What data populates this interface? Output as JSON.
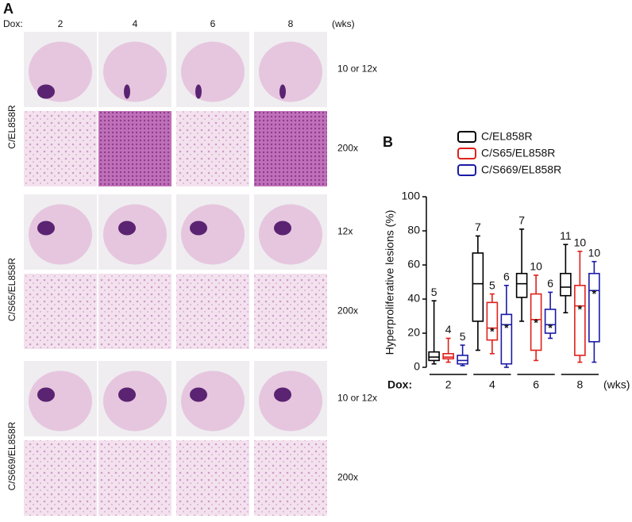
{
  "panel_a": {
    "label": "A",
    "dox_label": "Dox:",
    "weeks": [
      "2",
      "4",
      "6",
      "8"
    ],
    "unit": "(wks)",
    "rows": [
      {
        "name": "C/EL858R",
        "low_mag": "10 or 12x",
        "high_mag": "200x"
      },
      {
        "name": "C/S65/EL858R",
        "low_mag": "12x",
        "high_mag": "200x"
      },
      {
        "name": "C/S669/EL858R",
        "low_mag": "10 or 12x",
        "high_mag": "200x"
      }
    ]
  },
  "chart_data": {
    "type": "box",
    "panel_label": "B",
    "ylabel": "Hyperproliferative lesions (%)",
    "x_prefix": "Dox:",
    "x_unit": "(wks)",
    "categories": [
      "2",
      "4",
      "6",
      "8"
    ],
    "ylim": [
      0,
      100
    ],
    "yticks": [
      0,
      20,
      40,
      60,
      80,
      100
    ],
    "series": [
      {
        "name": "C/EL858R",
        "color": "#000000",
        "stats": [
          {
            "min": 2,
            "q1": 4,
            "median": 6,
            "q3": 9,
            "max": 39
          },
          {
            "min": 10,
            "q1": 27,
            "median": 49,
            "q3": 67,
            "max": 77
          },
          {
            "min": 27,
            "q1": 41,
            "median": 49,
            "q3": 55,
            "max": 81
          },
          {
            "min": 32,
            "q1": 42,
            "median": 47,
            "q3": 55,
            "max": 72
          }
        ],
        "n": [
          5,
          7,
          7,
          11
        ],
        "markers": [
          null,
          null,
          null,
          null
        ]
      },
      {
        "name": "C/S65/EL858R",
        "color": "#e0201b",
        "stats": [
          {
            "min": 3,
            "q1": 5,
            "median": 6,
            "q3": 8,
            "max": 17
          },
          {
            "min": 8,
            "q1": 16,
            "median": 23,
            "q3": 38,
            "max": 43
          },
          {
            "min": 4,
            "q1": 10,
            "median": 28,
            "q3": 43,
            "max": 54
          },
          {
            "min": 3,
            "q1": 7,
            "median": 36,
            "q3": 48,
            "max": 68
          }
        ],
        "n": [
          4,
          5,
          10,
          10
        ],
        "markers": [
          null,
          "*",
          "*",
          "*"
        ]
      },
      {
        "name": "C/S669/EL858R",
        "color": "#1a1aa6",
        "stats": [
          {
            "min": 1,
            "q1": 2,
            "median": 4,
            "q3": 7,
            "max": 13
          },
          {
            "min": 0,
            "q1": 2,
            "median": 25,
            "q3": 31,
            "max": 48
          },
          {
            "min": 17,
            "q1": 20,
            "median": 25,
            "q3": 34,
            "max": 44
          },
          {
            "min": 3,
            "q1": 15,
            "median": 45,
            "q3": 55,
            "max": 62
          }
        ],
        "n": [
          5,
          6,
          6,
          10
        ],
        "markers": [
          null,
          "*",
          "*",
          "*"
        ]
      }
    ]
  }
}
